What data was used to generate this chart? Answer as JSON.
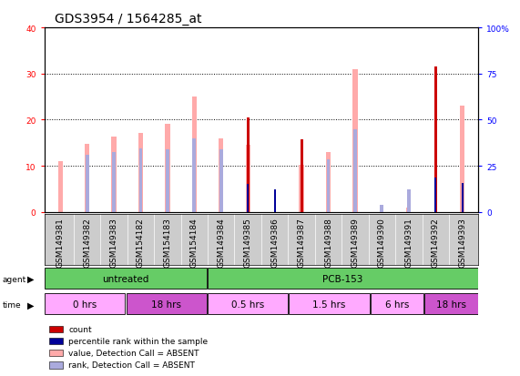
{
  "title": "GDS3954 / 1564285_at",
  "samples": [
    "GSM149381",
    "GSM149382",
    "GSM149383",
    "GSM154182",
    "GSM154183",
    "GSM154184",
    "GSM149384",
    "GSM149385",
    "GSM149386",
    "GSM149387",
    "GSM149388",
    "GSM149389",
    "GSM149390",
    "GSM149391",
    "GSM149392",
    "GSM149393"
  ],
  "count_values": [
    0,
    0,
    0,
    0,
    0,
    0,
    0,
    20.5,
    0,
    15.8,
    0,
    0,
    0,
    0,
    31.5,
    0
  ],
  "rank_values": [
    0,
    0,
    0,
    0,
    0,
    0,
    0,
    15,
    12.5,
    0,
    0,
    0,
    0,
    0,
    18.5,
    15.5
  ],
  "pink_values": [
    11,
    14.7,
    16.4,
    17.2,
    19.2,
    25,
    16,
    14.5,
    0,
    10.2,
    13,
    31,
    0,
    1,
    0,
    23
  ],
  "light_blue_values": [
    0,
    12.5,
    13,
    13.8,
    13.5,
    16,
    13.5,
    0,
    0,
    0,
    11.5,
    18,
    1.5,
    5,
    0,
    0
  ],
  "ylim_left": [
    0,
    40
  ],
  "ylim_right": [
    0,
    100
  ],
  "yticks_left": [
    0,
    10,
    20,
    30,
    40
  ],
  "yticks_right": [
    0,
    25,
    50,
    75,
    100
  ],
  "yticklabels_right": [
    "0",
    "25",
    "50",
    "75",
    "100%"
  ],
  "agent_groups": [
    {
      "label": "untreated",
      "start": 0,
      "end": 6,
      "color": "#66cc66"
    },
    {
      "label": "PCB-153",
      "start": 6,
      "end": 16,
      "color": "#66cc66"
    }
  ],
  "time_groups": [
    {
      "label": "0 hrs",
      "start": 0,
      "end": 3,
      "color": "#ffaaff"
    },
    {
      "label": "18 hrs",
      "start": 3,
      "end": 6,
      "color": "#cc55cc"
    },
    {
      "label": "0.5 hrs",
      "start": 6,
      "end": 9,
      "color": "#ffaaff"
    },
    {
      "label": "1.5 hrs",
      "start": 9,
      "end": 12,
      "color": "#ffaaff"
    },
    {
      "label": "6 hrs",
      "start": 12,
      "end": 14,
      "color": "#ffaaff"
    },
    {
      "label": "18 hrs",
      "start": 14,
      "end": 16,
      "color": "#cc55cc"
    }
  ],
  "legend_items": [
    {
      "label": "count",
      "color": "#cc0000"
    },
    {
      "label": "percentile rank within the sample",
      "color": "#000099"
    },
    {
      "label": "value, Detection Call = ABSENT",
      "color": "#ffaaaa"
    },
    {
      "label": "rank, Detection Call = ABSENT",
      "color": "#aaaadd"
    }
  ],
  "count_color": "#cc0000",
  "rank_color": "#000099",
  "pink_color": "#ffaaaa",
  "light_blue_color": "#aaaadd",
  "gray_bg": "#cccccc",
  "title_fontsize": 10,
  "tick_fontsize": 6.5,
  "label_fontsize": 7.5
}
